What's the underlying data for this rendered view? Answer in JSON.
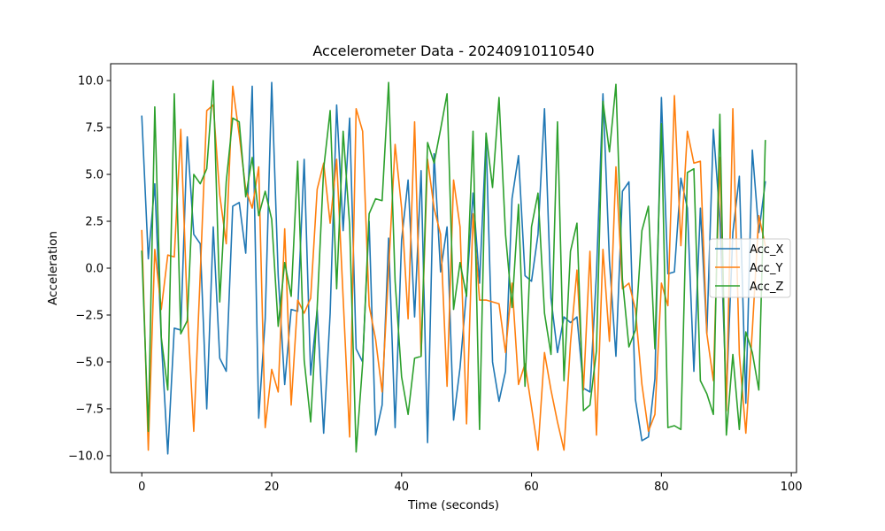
{
  "chart_data": {
    "type": "line",
    "title": "Accelerometer Data - 20240910110540",
    "xlabel": "Time (seconds)",
    "ylabel": "Acceleration",
    "xlim": [
      -4.8,
      100.8
    ],
    "ylim": [
      -10.9,
      10.9
    ],
    "xticks": [
      0,
      20,
      40,
      60,
      80,
      100
    ],
    "xtick_labels": [
      "0",
      "20",
      "40",
      "60",
      "80",
      "100"
    ],
    "yticks": [
      -10,
      -7.5,
      -5,
      -2.5,
      0,
      2.5,
      5,
      7.5,
      10
    ],
    "ytick_labels": [
      "−10.0",
      "−7.5",
      "−5.0",
      "−2.5",
      "0.0",
      "2.5",
      "5.0",
      "7.5",
      "10.0"
    ],
    "grid": false,
    "legend_position": "center-right",
    "x": [
      0,
      1,
      2,
      3,
      4,
      5,
      6,
      7,
      8,
      9,
      10,
      11,
      12,
      13,
      14,
      15,
      16,
      17,
      18,
      19,
      20,
      21,
      22,
      23,
      24,
      25,
      26,
      27,
      28,
      29,
      30,
      31,
      32,
      33,
      34,
      35,
      36,
      37,
      38,
      39,
      40,
      41,
      42,
      43,
      44,
      45,
      46,
      47,
      48,
      49,
      50,
      51,
      52,
      53,
      54,
      55,
      56,
      57,
      58,
      59,
      60,
      61,
      62,
      63,
      64,
      65,
      66,
      67,
      68,
      69,
      70,
      71,
      72,
      73,
      74,
      75,
      76,
      77,
      78,
      79,
      80,
      81,
      82,
      83,
      84,
      85,
      86,
      87,
      88,
      89,
      90,
      91,
      92,
      93,
      94,
      95,
      96
    ],
    "series": [
      {
        "name": "Acc_X",
        "color": "#1f77b4",
        "values": [
          8.1,
          0.5,
          4.5,
          -3.8,
          -9.9,
          -3.2,
          -3.3,
          7.0,
          1.8,
          1.3,
          -7.5,
          2.2,
          -4.8,
          -5.5,
          3.3,
          3.5,
          0.8,
          9.7,
          -8.0,
          -2.7,
          9.9,
          -0.4,
          -6.2,
          -2.2,
          -2.3,
          5.8,
          -5.7,
          -2.2,
          -8.8,
          -2.4,
          8.7,
          2.0,
          8.0,
          -4.3,
          -5.0,
          2.5,
          -8.9,
          -7.3,
          1.6,
          -8.5,
          1.5,
          4.7,
          -2.6,
          5.2,
          -9.3,
          6.1,
          -0.2,
          2.2,
          -8.1,
          -5.3,
          -1.2,
          4.0,
          -0.8,
          7.0,
          -5.0,
          -7.1,
          -5.5,
          3.7,
          6.0,
          -0.4,
          -0.7,
          1.8,
          8.5,
          -1.6,
          -4.5,
          -2.6,
          -2.9,
          -2.6,
          -6.4,
          -6.6,
          -0.3,
          9.3,
          0.4,
          -4.7,
          4.1,
          4.6,
          -7.0,
          -9.2,
          -9.0,
          -5.9,
          9.1,
          -0.3,
          -0.2,
          4.8,
          3.2,
          -5.5,
          3.2,
          -3.5,
          7.4,
          2.7,
          -6.9,
          1.9,
          4.9,
          -7.2,
          6.3,
          1.9,
          4.6
        ]
      },
      {
        "name": "Acc_Y",
        "color": "#ff7f0e",
        "values": [
          2.0,
          -9.7,
          1.0,
          -2.2,
          0.7,
          0.6,
          7.4,
          -2.2,
          -8.7,
          -0.3,
          8.4,
          8.7,
          3.9,
          1.3,
          9.7,
          7.1,
          4.2,
          3.2,
          5.4,
          -8.5,
          -5.4,
          -6.6,
          2.1,
          -7.3,
          -1.7,
          -2.4,
          -1.6,
          4.2,
          5.6,
          2.4,
          5.8,
          -1.6,
          -9.0,
          8.5,
          7.3,
          -2.0,
          -3.8,
          -6.6,
          -0.1,
          6.6,
          3.2,
          -2.7,
          7.8,
          -4.7,
          5.8,
          3.2,
          1.8,
          -6.3,
          4.7,
          2.2,
          -8.3,
          2.9,
          -1.7,
          -1.7,
          -1.8,
          -1.9,
          -4.5,
          -0.8,
          -6.2,
          -5.1,
          -7.4,
          -9.7,
          -4.5,
          -6.5,
          -8.2,
          -9.7,
          -4.0,
          -0.1,
          -6.5,
          0.9,
          -8.9,
          1.0,
          -3.9,
          5.4,
          -1.1,
          -0.8,
          -2.2,
          -6.2,
          -8.7,
          -7.8,
          -0.8,
          -2.0,
          9.2,
          1.2,
          7.3,
          5.6,
          5.7,
          -3.5,
          -6.0,
          5.9,
          -7.6,
          8.5,
          -4.6,
          -8.8,
          -3.3,
          2.8,
          1.2
        ]
      },
      {
        "name": "Acc_Z",
        "color": "#2ca02c",
        "values": [
          0.9,
          -8.7,
          8.6,
          -3.7,
          -6.5,
          9.3,
          -3.5,
          -2.8,
          5.0,
          4.5,
          5.3,
          10.0,
          -1.8,
          4.6,
          8.0,
          7.8,
          3.8,
          5.9,
          2.8,
          4.1,
          2.6,
          -3.1,
          0.3,
          -1.5,
          5.7,
          -4.9,
          -8.2,
          -2.1,
          5.3,
          8.4,
          -1.1,
          7.3,
          2.3,
          -9.8,
          -5.1,
          2.9,
          3.7,
          3.6,
          9.9,
          -0.7,
          -5.8,
          -7.8,
          -4.8,
          -4.7,
          6.7,
          5.6,
          7.4,
          9.3,
          -2.2,
          0.3,
          -1.5,
          7.3,
          -8.6,
          7.2,
          4.3,
          9.1,
          1.8,
          -2.1,
          3.4,
          -6.3,
          2.2,
          4.0,
          -2.4,
          -4.6,
          7.8,
          -6.0,
          0.9,
          2.4,
          -7.6,
          -7.3,
          -4.4,
          8.9,
          6.2,
          9.8,
          -0.6,
          -4.2,
          -3.3,
          2.0,
          3.3,
          -4.3,
          7.7,
          -8.5,
          -8.4,
          -8.6,
          5.1,
          5.3,
          -6.0,
          -6.7,
          -7.8,
          8.2,
          -8.9,
          -4.6,
          -8.6,
          -3.4,
          -4.5,
          -6.5,
          6.8
        ]
      }
    ]
  }
}
